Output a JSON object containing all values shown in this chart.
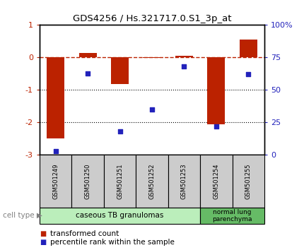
{
  "title": "GDS4256 / Hs.321717.0.S1_3p_at",
  "samples": [
    "GSM501249",
    "GSM501250",
    "GSM501251",
    "GSM501252",
    "GSM501253",
    "GSM501254",
    "GSM501255"
  ],
  "red_values": [
    -2.5,
    0.15,
    -0.82,
    -0.02,
    0.05,
    -2.05,
    0.55
  ],
  "blue_values": [
    3,
    63,
    18,
    35,
    68,
    22,
    62
  ],
  "red_color": "#bb2200",
  "blue_color": "#2222bb",
  "ylim_left": [
    -3,
    1
  ],
  "ylim_right": [
    0,
    100
  ],
  "yticks_left": [
    -3,
    -2,
    -1,
    0,
    1
  ],
  "yticks_right": [
    0,
    25,
    50,
    75,
    100
  ],
  "ytick_labels_right": [
    "0",
    "25",
    "50",
    "75",
    "100%"
  ],
  "dotted_lines": [
    -1,
    -2
  ],
  "cell_groups": [
    {
      "label": "caseous TB granulomas",
      "n_samples": 5,
      "color": "#bbeebb"
    },
    {
      "label": "normal lung\nparenchyma",
      "n_samples": 2,
      "color": "#66bb66"
    }
  ],
  "cell_type_label": "cell type",
  "legend_red": "transformed count",
  "legend_blue": "percentile rank within the sample",
  "bar_width": 0.55,
  "fig_width": 4.3,
  "fig_height": 3.54,
  "dpi": 100
}
